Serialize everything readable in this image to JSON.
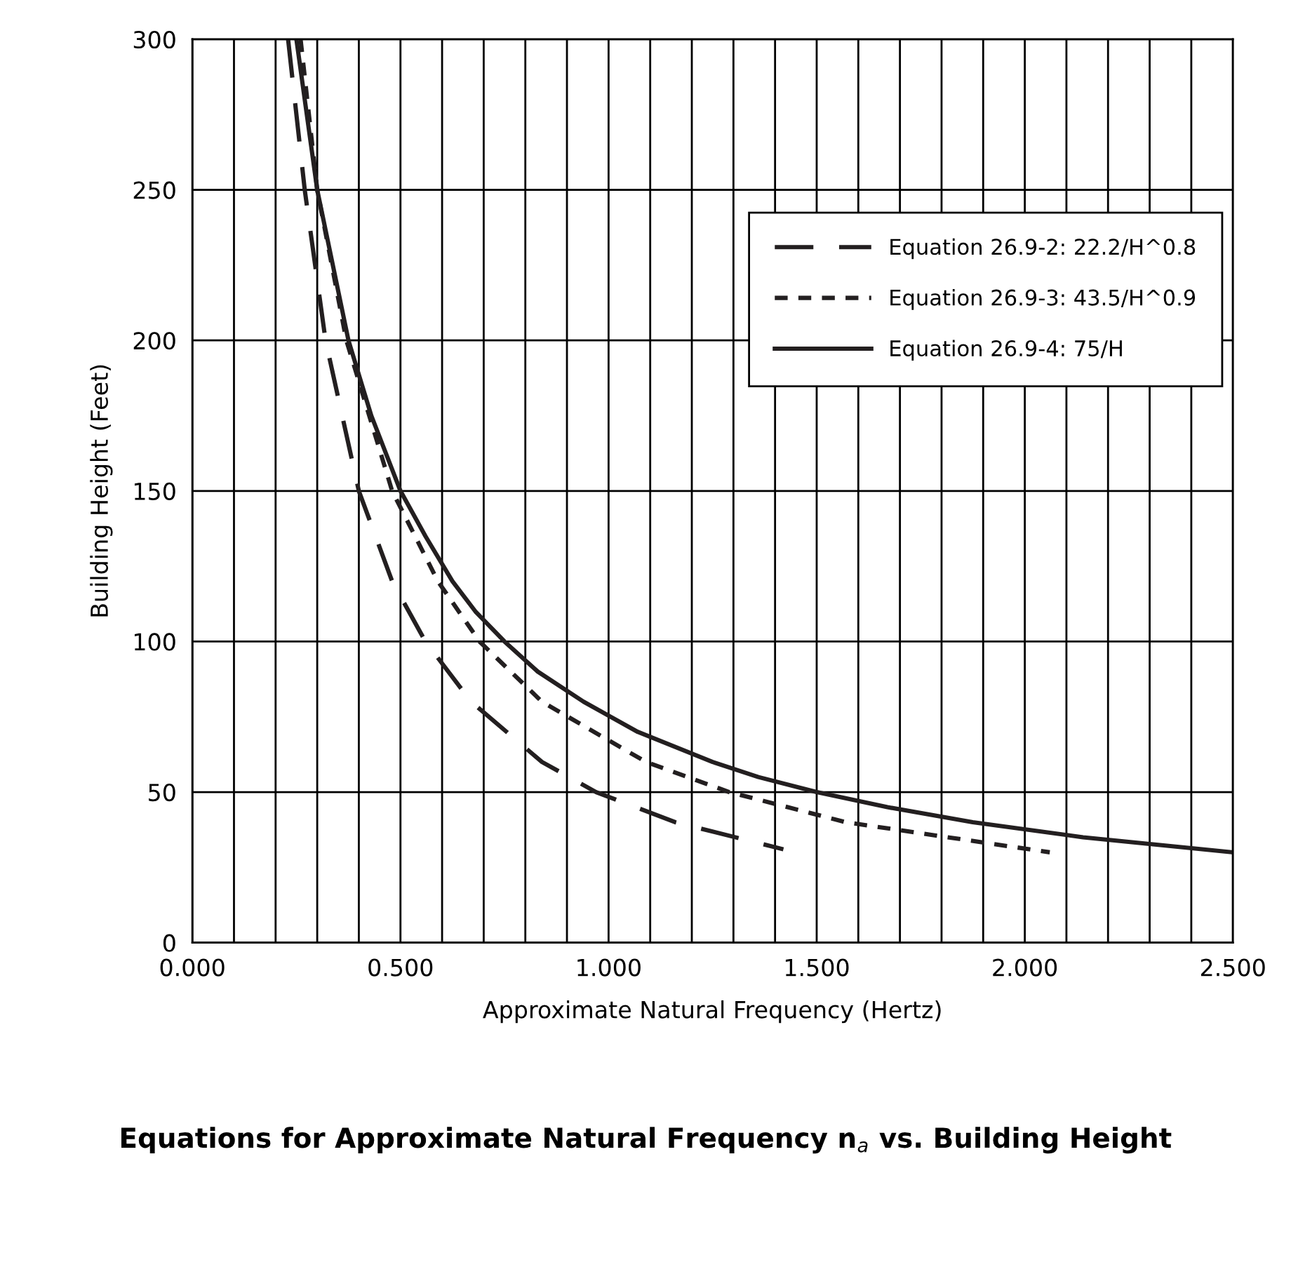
{
  "chart_data": {
    "type": "line",
    "title": "Equations for Approximate Natural Frequency n$_{a}$ vs. Building Height",
    "xlabel": "Approximate Natural Frequency (Hertz)",
    "ylabel": "Building Height (Feet)",
    "xlim": [
      0,
      2.5
    ],
    "ylim": [
      0,
      300
    ],
    "xticks": [
      {
        "value": 0,
        "label": "0.000"
      },
      {
        "value": 0.1,
        "label": null
      },
      {
        "value": 0.2,
        "label": null
      },
      {
        "value": 0.3,
        "label": null
      },
      {
        "value": 0.4,
        "label": null
      },
      {
        "value": 0.5,
        "label": "0.500"
      },
      {
        "value": 0.6,
        "label": null
      },
      {
        "value": 0.7,
        "label": null
      },
      {
        "value": 0.8,
        "label": null
      },
      {
        "value": 0.9,
        "label": null
      },
      {
        "value": 1.0,
        "label": "1.000"
      },
      {
        "value": 1.1,
        "label": null
      },
      {
        "value": 1.2,
        "label": null
      },
      {
        "value": 1.3,
        "label": null
      },
      {
        "value": 1.4,
        "label": null
      },
      {
        "value": 1.5,
        "label": "1.500"
      },
      {
        "value": 1.6,
        "label": null
      },
      {
        "value": 1.7,
        "label": null
      },
      {
        "value": 1.8,
        "label": null
      },
      {
        "value": 1.9,
        "label": null
      },
      {
        "value": 2.0,
        "label": "2.000"
      },
      {
        "value": 2.1,
        "label": null
      },
      {
        "value": 2.2,
        "label": null
      },
      {
        "value": 2.3,
        "label": null
      },
      {
        "value": 2.4,
        "label": null
      },
      {
        "value": 2.5,
        "label": "2.500"
      }
    ],
    "yticks": [
      0,
      50,
      100,
      150,
      200,
      250,
      300
    ],
    "grid": true,
    "legend": "top right",
    "marker": "none",
    "series": [
      {
        "name": "Equation 26.9-2: 22.2/H^0.8",
        "color": "#231f20",
        "line_style": "dashed",
        "x": [
          0.23,
          0.27,
          0.32,
          0.4,
          0.48,
          0.56,
          0.67,
          0.84,
          0.97,
          1.16,
          1.42
        ],
        "values": [
          300,
          250,
          200,
          150,
          120,
          100,
          80,
          60,
          50,
          40,
          31
        ]
      },
      {
        "name": "Equation 26.9-3: 43.5/H^0.9",
        "color": "#231f20",
        "line_style": "dotted",
        "x": [
          0.26,
          0.3,
          0.37,
          0.48,
          0.59,
          0.69,
          0.84,
          1.09,
          1.29,
          1.57,
          2.06
        ],
        "values": [
          300,
          250,
          200,
          150,
          120,
          100,
          80,
          60,
          50,
          40,
          30
        ]
      },
      {
        "name": "Equation 26.9-4: 75/H",
        "color": "#231f20",
        "line_style": "solid",
        "x": [
          0.25,
          0.3,
          0.375,
          0.43,
          0.5,
          0.56,
          0.625,
          0.68,
          0.75,
          0.83,
          0.94,
          1.07,
          1.25,
          1.36,
          1.5,
          1.67,
          1.875,
          2.14,
          2.5
        ],
        "values": [
          300,
          250,
          200,
          175,
          150,
          135,
          120,
          110,
          100,
          90,
          80,
          70,
          60,
          55,
          50,
          45,
          40,
          35,
          30
        ]
      }
    ]
  }
}
